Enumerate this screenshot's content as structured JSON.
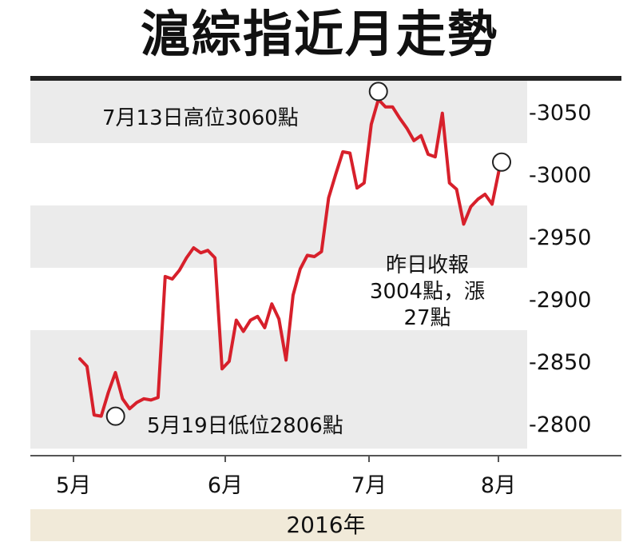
{
  "title": "滬綜指近月走勢",
  "chart_data": {
    "type": "line",
    "title": "滬綜指近月走勢",
    "xlabel": "",
    "ylabel": "",
    "x_tick_labels": [
      "5月",
      "6月",
      "7月",
      "8月"
    ],
    "y_ticks": [
      2800,
      2850,
      2900,
      2950,
      3000,
      3050
    ],
    "y_tick_labels": [
      "-2800",
      "-2850",
      "-2900",
      "-2950",
      "-3000",
      "-3050"
    ],
    "ylim": [
      2780,
      3080
    ],
    "year_label": "2016年",
    "grid": "alternating horizontal bands",
    "line_color": "#d7202b",
    "band_color": "#ebebeb",
    "series": [
      {
        "values": [
          2852,
          2846,
          2807,
          2806,
          2825,
          2841,
          2820,
          2812,
          2817,
          2820,
          2819,
          2821,
          2918,
          2916,
          2923,
          2933,
          2941,
          2937,
          2939,
          2933,
          2844,
          2850,
          2883,
          2874,
          2883,
          2886,
          2877,
          2896,
          2884,
          2851,
          2903,
          2924,
          2935,
          2934,
          2938,
          2981,
          3000,
          3018,
          3017,
          2989,
          2993,
          3040,
          3060,
          3054,
          3054,
          3045,
          3037,
          3027,
          3031,
          3016,
          3014,
          3049,
          2993,
          2988,
          2960,
          2974,
          2980,
          2984,
          2976,
          3004
        ]
      }
    ],
    "annotations": [
      {
        "text": "7月13日高位3060點",
        "x_index": 42,
        "value": 3060
      },
      {
        "text": "5月19日低位2806點",
        "x_index": 3,
        "value": 2806
      },
      {
        "lines": [
          "昨日收報",
          "3004點，漲",
          "27點"
        ],
        "x_index": 59,
        "value": 3004
      }
    ]
  }
}
